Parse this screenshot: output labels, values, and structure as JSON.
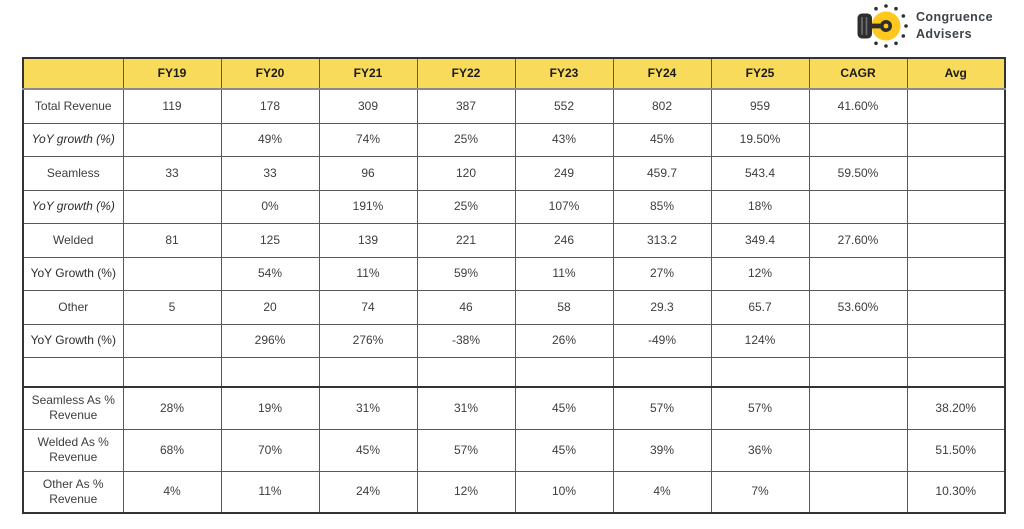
{
  "logo": {
    "line1": "Congruence",
    "line2": "Advisers"
  },
  "colors": {
    "header_bg": "#F9DB5C",
    "logo_yellow": "#FFC81E",
    "logo_dark": "#2e2e2e",
    "grid_line": "#595959",
    "outer_border": "#333333",
    "label_text": "#161616",
    "value_text": "#3d3d3d"
  },
  "chart_data": {
    "type": "table",
    "columns": [
      "",
      "FY19",
      "FY20",
      "FY21",
      "FY22",
      "FY23",
      "FY24",
      "FY25",
      "CAGR",
      "Avg"
    ],
    "rows": [
      {
        "label": "Total Revenue",
        "kind": "section",
        "values": [
          "119",
          "178",
          "309",
          "387",
          "552",
          "802",
          "959",
          "41.60%",
          ""
        ]
      },
      {
        "label": "YoY growth (%)",
        "kind": "subrow-italic",
        "values": [
          "",
          "49%",
          "74%",
          "25%",
          "43%",
          "45%",
          "19.50%",
          "",
          ""
        ]
      },
      {
        "label": "Seamless",
        "kind": "section",
        "values": [
          "33",
          "33",
          "96",
          "120",
          "249",
          "459.7",
          "543.4",
          "59.50%",
          ""
        ]
      },
      {
        "label": "YoY growth (%)",
        "kind": "subrow-italic",
        "values": [
          "",
          "0%",
          "191%",
          "25%",
          "107%",
          "85%",
          "18%",
          "",
          ""
        ]
      },
      {
        "label": "Welded",
        "kind": "section",
        "values": [
          "81",
          "125",
          "139",
          "221",
          "246",
          "313.2",
          "349.4",
          "27.60%",
          ""
        ]
      },
      {
        "label": "YoY Growth (%)",
        "kind": "subrow",
        "values": [
          "",
          "54%",
          "11%",
          "59%",
          "11%",
          "27%",
          "12%",
          "",
          ""
        ]
      },
      {
        "label": "Other",
        "kind": "section",
        "values": [
          "5",
          "20",
          "74",
          "46",
          "58",
          "29.3",
          "65.7",
          "53.60%",
          ""
        ]
      },
      {
        "label": "YoY Growth (%)",
        "kind": "subrow",
        "values": [
          "",
          "296%",
          "276%",
          "-38%",
          "26%",
          "-49%",
          "124%",
          "",
          ""
        ]
      },
      {
        "label": "",
        "kind": "empty",
        "values": [
          "",
          "",
          "",
          "",
          "",
          "",
          "",
          "",
          ""
        ]
      },
      {
        "label": "Seamless As % Revenue",
        "kind": "summary",
        "values": [
          "28%",
          "19%",
          "31%",
          "31%",
          "45%",
          "57%",
          "57%",
          "",
          "38.20%"
        ]
      },
      {
        "label": "Welded As % Revenue",
        "kind": "summary",
        "values": [
          "68%",
          "70%",
          "45%",
          "57%",
          "45%",
          "39%",
          "36%",
          "",
          "51.50%"
        ]
      },
      {
        "label": "Other As % Revenue",
        "kind": "summary",
        "values": [
          "4%",
          "11%",
          "24%",
          "12%",
          "10%",
          "4%",
          "7%",
          "",
          "10.30%"
        ]
      }
    ]
  }
}
